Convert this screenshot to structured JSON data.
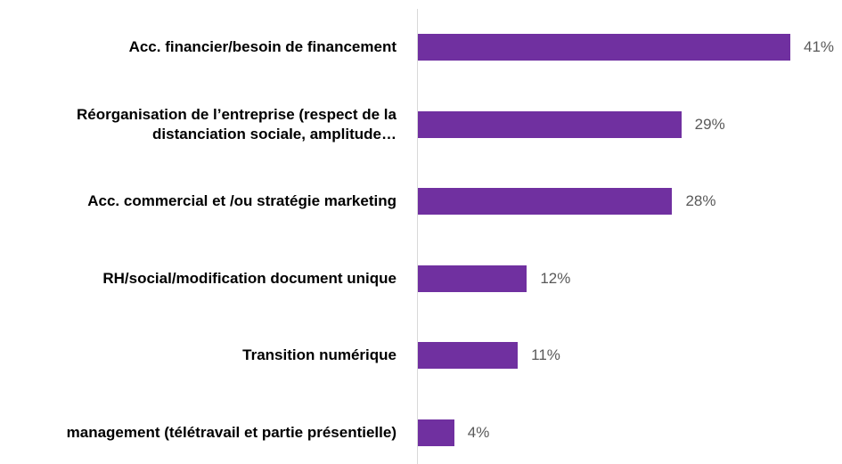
{
  "chart_data": {
    "type": "bar",
    "orientation": "horizontal",
    "categories": [
      "Acc. financier/besoin de financement",
      "Réorganisation de l’entreprise (respect de la distanciation sociale, amplitude…",
      "Acc. commercial et /ou stratégie marketing",
      "RH/social/modification document unique",
      "Transition numérique",
      "management (télétravail et partie présentielle)"
    ],
    "values": [
      41,
      29,
      28,
      12,
      11,
      4
    ],
    "value_labels": [
      "41%",
      "29%",
      "28%",
      "12%",
      "11%",
      "4%"
    ],
    "color": "#7030a0"
  }
}
